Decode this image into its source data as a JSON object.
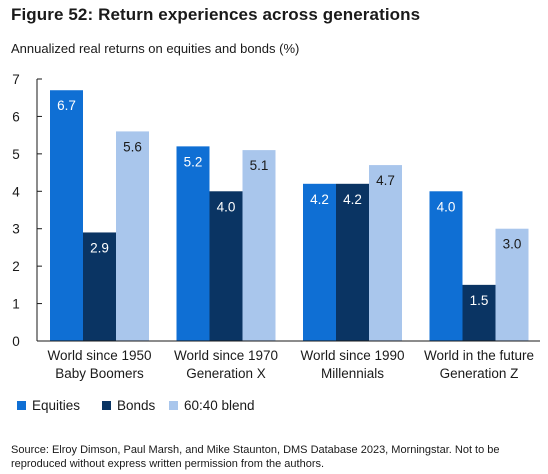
{
  "figure": {
    "title": "Figure 52: Return experiences across generations",
    "source": "Source: Elroy Dimson, Paul Marsh, and Mike Staunton, DMS Database 2023, Morningstar. Not to be reproduced without express written permission from the authors."
  },
  "chart_data": {
    "type": "bar",
    "ylabel": "Annualized real returns on equities and bonds (%)",
    "xlabel": "",
    "ylim": [
      0,
      7
    ],
    "yticks": [
      "0",
      "1",
      "2",
      "3",
      "4",
      "5",
      "6",
      "7"
    ],
    "grid": false,
    "legend_position": "bottom-left",
    "categories": [
      [
        "World since 1950",
        "Baby Boomers"
      ],
      [
        "World since 1970",
        "Generation X"
      ],
      [
        "World since 1990",
        "Millennials"
      ],
      [
        "World in the future",
        "Generation Z"
      ]
    ],
    "series": [
      {
        "name": "Equities",
        "color": "#0f6fd4",
        "label_color": "#ffffff",
        "values": [
          6.7,
          5.2,
          4.2,
          4.0
        ],
        "labels": [
          "6.7",
          "5.2",
          "4.2",
          "4.0"
        ]
      },
      {
        "name": "Bonds",
        "color": "#0a3463",
        "label_color": "#ffffff",
        "values": [
          2.9,
          4.0,
          4.2,
          1.5
        ],
        "labels": [
          "2.9",
          "4.0",
          "4.2",
          "1.5"
        ]
      },
      {
        "name": "60:40 blend",
        "color": "#a9c6ec",
        "label_color": "#1a1a1a",
        "values": [
          5.6,
          5.1,
          4.7,
          3.0
        ],
        "labels": [
          "5.6",
          "5.1",
          "4.7",
          "3.0"
        ]
      }
    ]
  }
}
